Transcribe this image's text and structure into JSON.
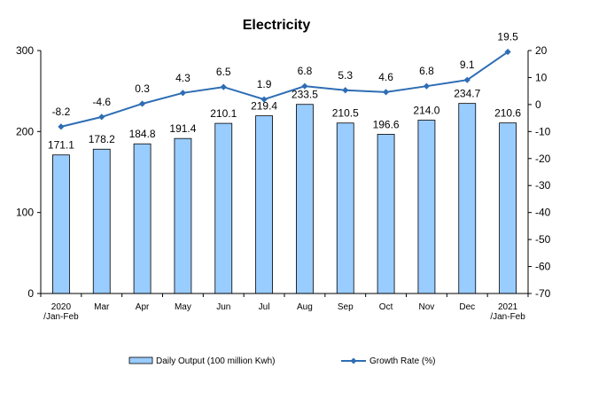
{
  "chart_data": {
    "type": "bar",
    "title": "Electricity",
    "categories": [
      [
        "2020",
        "/Jan-Feb"
      ],
      [
        "Mar"
      ],
      [
        "Apr"
      ],
      [
        "May"
      ],
      [
        "Jun"
      ],
      [
        "Jul"
      ],
      [
        "Aug"
      ],
      [
        "Sep"
      ],
      [
        "Oct"
      ],
      [
        "Nov"
      ],
      [
        "Dec"
      ],
      [
        "2021",
        "/Jan-Feb"
      ]
    ],
    "series": [
      {
        "name": "Daily Output (100 million Kwh)",
        "type": "bar",
        "axis": "left",
        "color": "#99ccff",
        "values": [
          171.1,
          178.2,
          184.8,
          191.4,
          210.1,
          219.4,
          233.5,
          210.5,
          196.6,
          214.0,
          234.7,
          210.6
        ],
        "labels": [
          "171.1",
          "178.2",
          "184.8",
          "191.4",
          "210.1",
          "219.4",
          "233.5",
          "210.5",
          "196.6",
          "214.0",
          "234.7",
          "210.6"
        ]
      },
      {
        "name": "Growth Rate (%)",
        "type": "line",
        "axis": "right",
        "color": "#2e6db4",
        "values": [
          -8.2,
          -4.6,
          0.3,
          4.3,
          6.5,
          1.9,
          6.8,
          5.3,
          4.6,
          6.8,
          9.1,
          19.5
        ],
        "labels": [
          "-8.2",
          "-4.6",
          "0.3",
          "4.3",
          "6.5",
          "1.9",
          "6.8",
          "5.3",
          "4.6",
          "6.8",
          "9.1",
          "19.5"
        ]
      }
    ],
    "y_left": {
      "ylim": [
        0,
        300
      ],
      "ticks": [
        "0",
        "100",
        "200",
        "300"
      ]
    },
    "y_right": {
      "ylim": [
        -70,
        20
      ],
      "ticks": [
        "20",
        "10",
        "0",
        "-10",
        "-20",
        "-30",
        "-40",
        "-50",
        "-60",
        "-70"
      ]
    },
    "grid": false,
    "legend": "bottom"
  }
}
